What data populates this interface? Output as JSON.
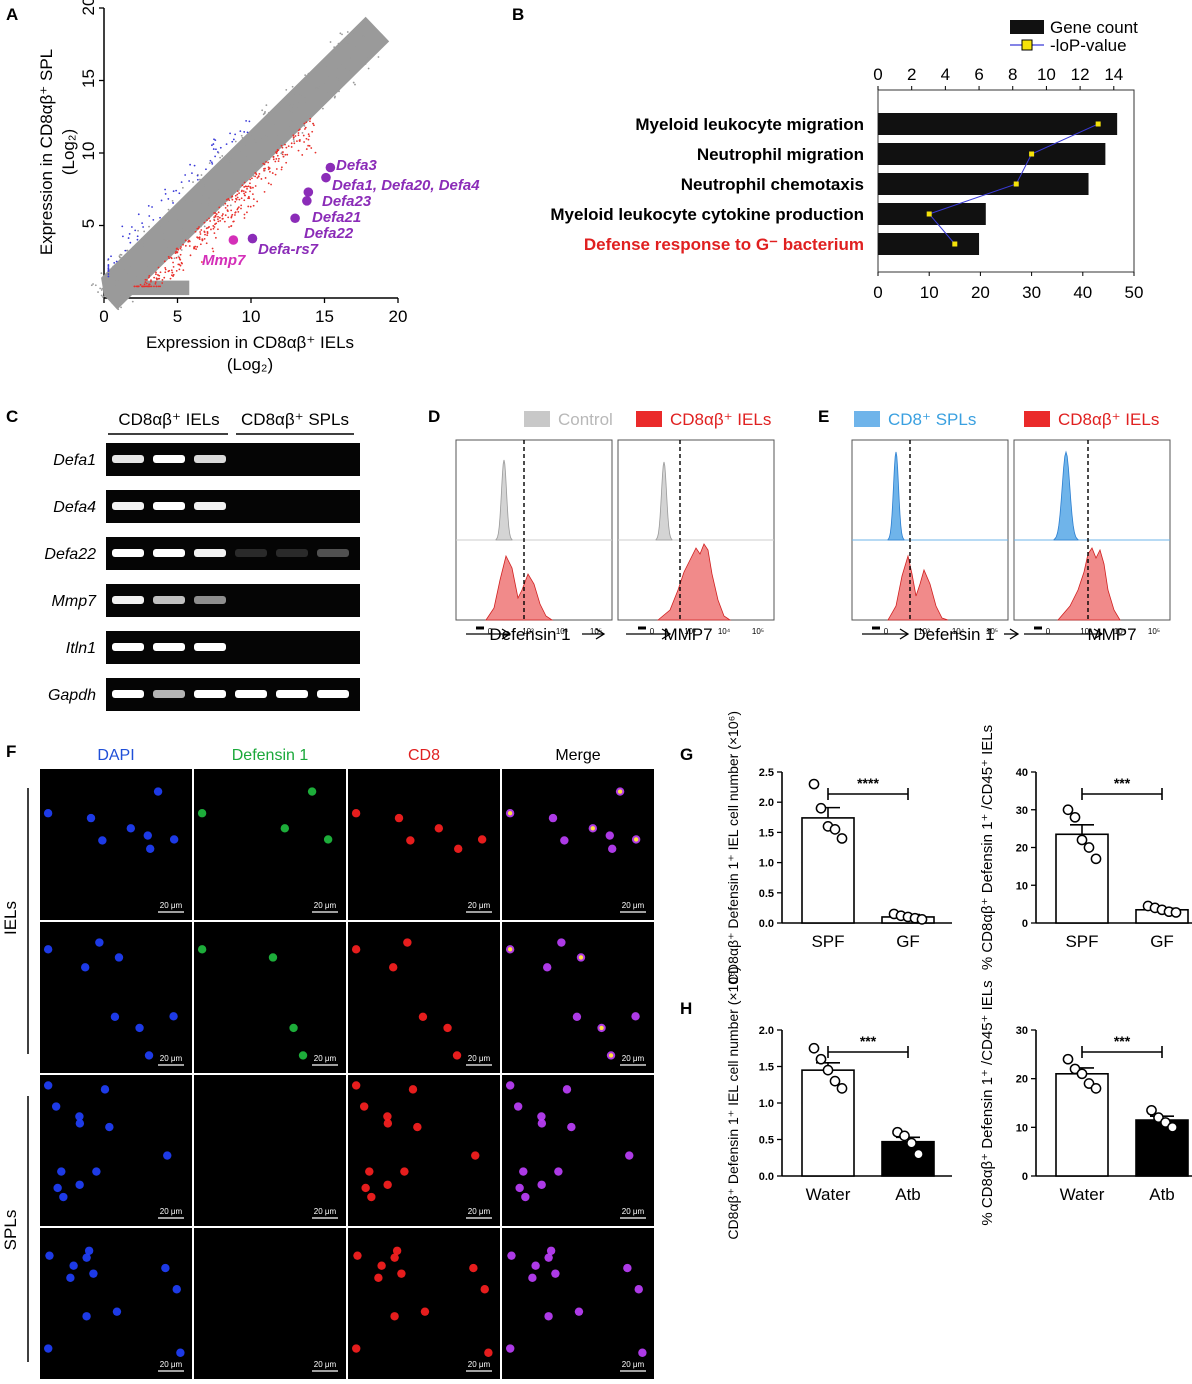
{
  "panels": {
    "a": "A",
    "b": "B",
    "c": "C",
    "d": "D",
    "e": "E",
    "f": "F",
    "g": "G",
    "h": "H"
  },
  "panelA": {
    "xlabel_line1": "Expression in CD8αβ⁺ IELs",
    "xlabel_line2": "(Log₂)",
    "ylabel_line1": "Expression in CD8αβ⁺ SPL",
    "ylabel_line2": "(Log₂)",
    "xticks": [
      "0",
      "5",
      "10",
      "15",
      "20"
    ],
    "yticks": [
      "5",
      "10",
      "15",
      "20"
    ],
    "genes": [
      {
        "label": "Defa3",
        "x": 15.4,
        "y": 9.0
      },
      {
        "label": "Defa1, Defa20, Defa4",
        "x": 15.1,
        "y": 8.3
      },
      {
        "label": "Defa23",
        "x": 13.9,
        "y": 7.3
      },
      {
        "label": "Defa21",
        "x": 13.8,
        "y": 6.7
      },
      {
        "label": "Defa22",
        "x": 13.0,
        "y": 5.5
      },
      {
        "label": "Defa-rs7",
        "x": 10.1,
        "y": 4.1
      },
      {
        "label": "Mmp7",
        "x": 8.8,
        "y": 4.0
      }
    ],
    "colors": {
      "gene": "#8b2cb8",
      "mmp7": "#d42fb8",
      "up": "#e8312c",
      "down": "#3a3ad8",
      "bulk": "#9a9a9a"
    }
  },
  "chart_data": [
    {
      "id": "B",
      "type": "bar",
      "categories": [
        "Myeloid leukocyte migration",
        "Neutrophil migration",
        "Neutrophil chemotaxis",
        "Myeloid leukocyte cytokine production",
        "Defense response to G⁻ bacterium"
      ],
      "series": [
        {
          "name": "Gene count",
          "values": [
            14.2,
            13.5,
            12.5,
            6.4,
            6.0
          ],
          "color": "#111111"
        },
        {
          "name": "-loP-value",
          "values": [
            43,
            30,
            27,
            10,
            15
          ],
          "color": "#3a3ad8"
        }
      ],
      "top_axis": {
        "ticks": [
          "0",
          "2",
          "4",
          "6",
          "8",
          "10",
          "12",
          "14"
        ],
        "range": [
          0,
          15.2
        ]
      },
      "bottom_axis": {
        "ticks": [
          "0",
          "10",
          "20",
          "30",
          "40",
          "50"
        ],
        "range": [
          0,
          50
        ]
      },
      "legend": [
        "Gene count",
        "-loP-value"
      ]
    },
    {
      "id": "G-left",
      "type": "bar",
      "categories": [
        "SPF",
        "GF"
      ],
      "values": [
        1.74,
        0.1
      ],
      "errors": [
        0.17,
        0.04
      ],
      "points": [
        [
          2.3,
          1.9,
          1.6,
          1.55,
          1.4
        ],
        [
          0.15,
          0.12,
          0.1,
          0.08,
          0.06
        ]
      ],
      "ylabel": "CD8αβ⁺ Defensin 1⁺ IEL cell number (×10⁶)",
      "yticks": [
        "0.0",
        "0.5",
        "1.0",
        "1.5",
        "2.0",
        "2.5"
      ],
      "ylim": [
        0,
        2.5
      ],
      "significance": "****"
    },
    {
      "id": "G-right",
      "type": "bar",
      "categories": [
        "SPF",
        "GF"
      ],
      "values": [
        23.5,
        3.5
      ],
      "errors": [
        2.5,
        0.4
      ],
      "points": [
        [
          30,
          28,
          22,
          20,
          17
        ],
        [
          4.5,
          4.0,
          3.5,
          3.0,
          2.8
        ]
      ],
      "ylabel": "% CD8αβ⁺ Defensin 1⁺ /CD45⁺ IELs",
      "yticks": [
        "0",
        "10",
        "20",
        "30",
        "40"
      ],
      "ylim": [
        0,
        40
      ],
      "significance": "***"
    },
    {
      "id": "H-left",
      "type": "bar",
      "categories": [
        "Water",
        "Atb"
      ],
      "values": [
        1.45,
        0.47
      ],
      "errors": [
        0.1,
        0.06
      ],
      "points": [
        [
          1.75,
          1.6,
          1.45,
          1.3,
          1.2
        ],
        [
          0.6,
          0.55,
          0.45,
          0.3
        ]
      ],
      "ylabel": "CD8αβ⁺ Defensin 1⁺ IEL cell number (×10⁶)",
      "yticks": [
        "0.0",
        "0.5",
        "1.0",
        "1.5",
        "2.0"
      ],
      "ylim": [
        0,
        2.0
      ],
      "significance": "***"
    },
    {
      "id": "H-right",
      "type": "bar",
      "categories": [
        "Water",
        "Atb"
      ],
      "values": [
        21,
        11.5
      ],
      "errors": [
        1.2,
        0.8
      ],
      "points": [
        [
          24,
          22,
          21,
          19,
          18
        ],
        [
          13.5,
          12,
          11,
          10
        ]
      ],
      "ylabel": "% CD8αβ⁺ Defensin 1⁺ /CD45⁺ IELs",
      "yticks": [
        "0",
        "10",
        "20",
        "30"
      ],
      "ylim": [
        0,
        30
      ],
      "significance": "***"
    }
  ],
  "panelC": {
    "group1": "CD8αβ⁺ IELs",
    "group2": "CD8αβ⁺ SPLs",
    "rows": [
      "Defa1",
      "Defa4",
      "Defa22",
      "Mmp7",
      "Itln1",
      "Gapdh"
    ]
  },
  "panelD": {
    "legend_control": "Control",
    "legend_iel": "CD8αβ⁺ IELs",
    "xlab1": "Defensin 1",
    "xlab2": "MMP7",
    "ticks": [
      "0",
      "10³",
      "10⁴",
      "10⁵"
    ]
  },
  "panelE": {
    "legend_spl": "CD8⁺ SPLs",
    "legend_iel": "CD8αβ⁺ IELs",
    "xlab1": "Defensin 1",
    "xlab2": "MMP7"
  },
  "panelF": {
    "channels": [
      "DAPI",
      "Defensin 1",
      "CD8",
      "Merge"
    ],
    "channel_colors": [
      "#1f4fd8",
      "#1aa83a",
      "#e02020",
      "#000000"
    ],
    "groups": [
      "IELs",
      "SPLs"
    ],
    "scale": "20 μm"
  }
}
